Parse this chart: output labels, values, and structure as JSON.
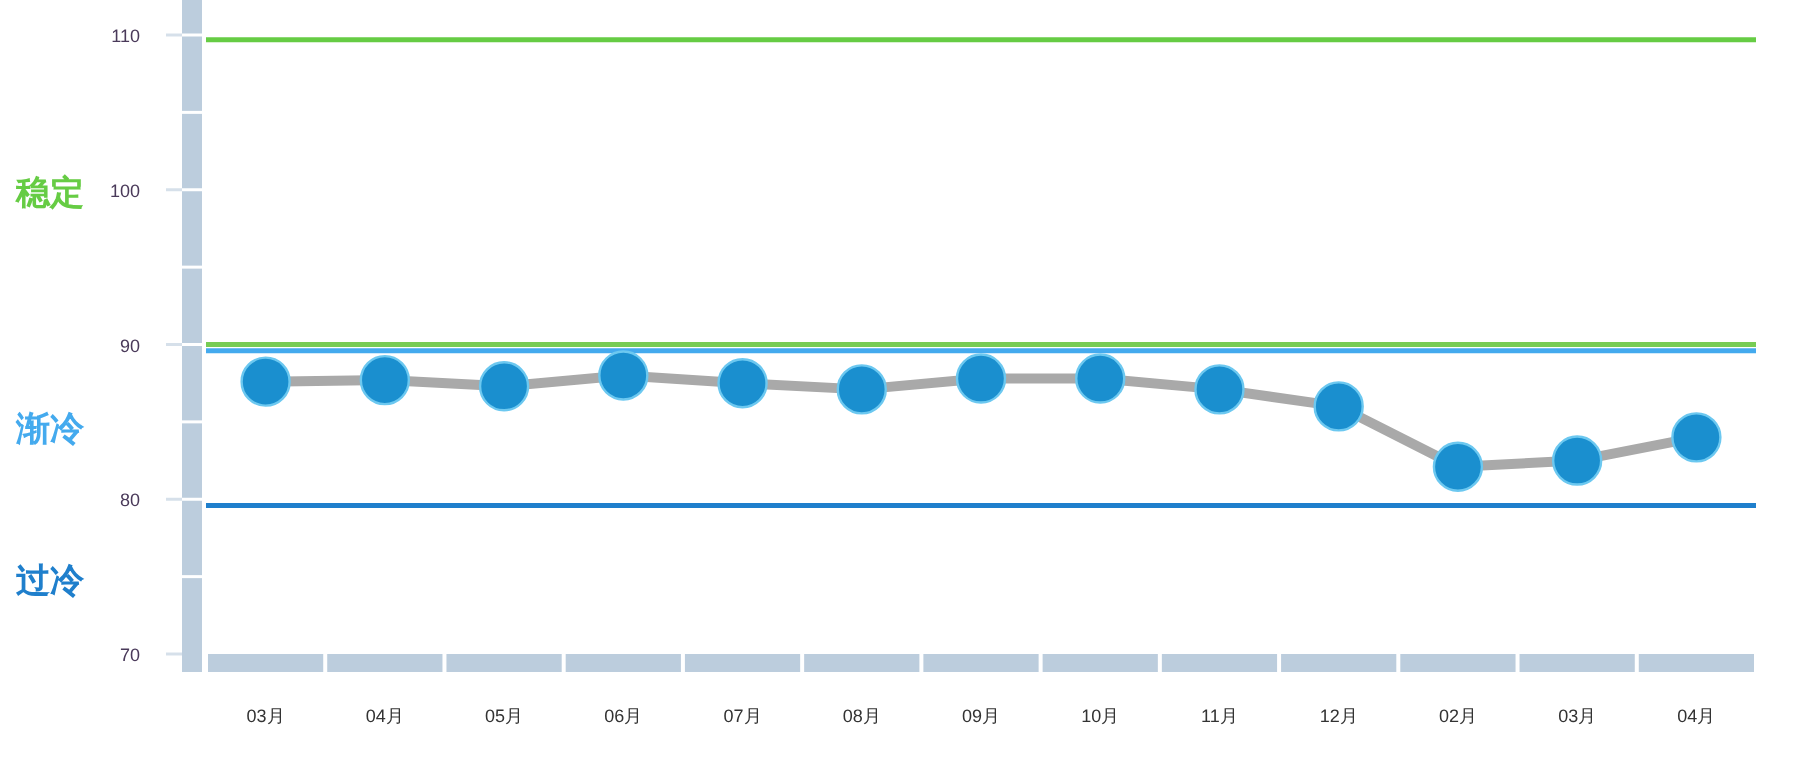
{
  "chart_data": {
    "type": "line",
    "categories": [
      "03月",
      "04月",
      "05月",
      "06月",
      "07月",
      "08月",
      "09月",
      "10月",
      "11月",
      "12月",
      "02月",
      "03月",
      "04月"
    ],
    "series": [
      {
        "color": "#1a8fcf",
        "values": [
          87.6,
          87.7,
          87.3,
          88.0,
          87.5,
          87.1,
          87.8,
          87.8,
          87.1,
          86.0,
          82.1,
          82.5,
          84.0
        ]
      }
    ],
    "marker": "circle",
    "ylim": [
      70,
      110
    ],
    "yticks": [
      70,
      80,
      90,
      100,
      110
    ],
    "ref_lines": [
      {
        "axis": "y",
        "value": 109.7,
        "color": "#66cc44"
      },
      {
        "axis": "y",
        "value": 90,
        "color": "#77cc55"
      },
      {
        "axis": "y",
        "value": 89.6,
        "color": "#44aaee"
      },
      {
        "axis": "y",
        "value": 79.6,
        "color": "#1f7fcc"
      }
    ],
    "annotations": [
      "稳定",
      "渐冷",
      "过冷"
    ]
  }
}
